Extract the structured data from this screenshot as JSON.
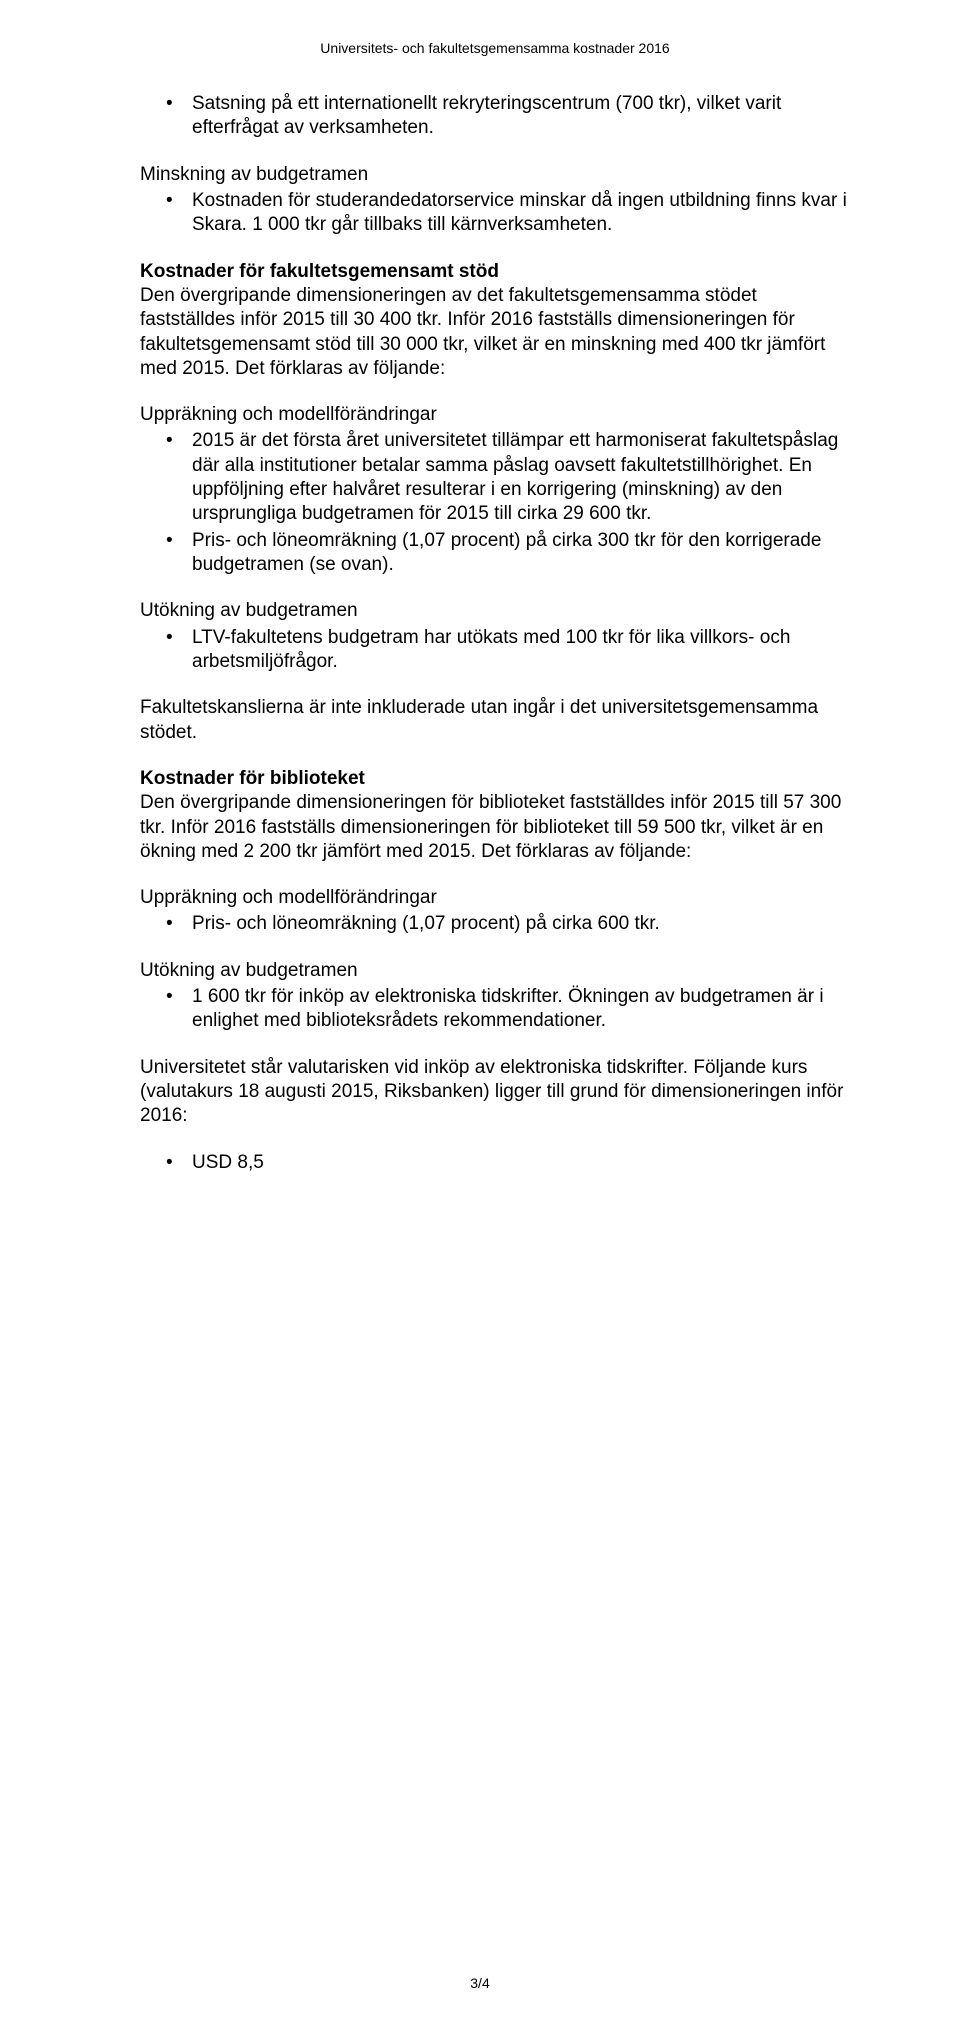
{
  "header": "Universitets- och fakultetsgemensamma kostnader 2016",
  "footer": "3/4",
  "b1_item1": "Satsning på ett internationellt rekryteringscentrum (700 tkr), vilket varit efterfrågat av verksamheten.",
  "p_minskning": "Minskning av budgetramen",
  "b2_item1": "Kostnaden för studerandedatorservice minskar då ingen utbildning finns kvar i Skara. 1 000 tkr går tillbaks till kärnverksamheten.",
  "h_fakstod": "Kostnader för fakultetsgemensamt stöd",
  "p_fakstod": "Den övergripande dimensioneringen av det fakultetsgemensamma stödet fastställdes inför 2015 till 30 400 tkr. Inför 2016 fastställs dimensioneringen för fakultetsgemensamt stöd till 30 000 tkr, vilket är en minskning med 400 tkr jämfört med 2015. Det förklaras av följande:",
  "p_upprakning1": "Uppräkning och modellförändringar",
  "b3_item1": "2015 är det första året universitetet tillämpar ett harmoniserat fakultetspåslag där alla institutioner betalar samma påslag oavsett fakultetstillhörighet. En uppföljning efter halvåret resulterar i en korrigering (minskning) av den ursprungliga budgetramen för 2015 till cirka 29 600 tkr.",
  "b3_item2": "Pris- och löneomräkning (1,07 procent) på cirka 300 tkr för den korrigerade budgetramen (se ovan).",
  "p_utokning1": "Utökning av budgetramen",
  "b4_item1": "LTV-fakultetens budgetram har utökats med 100 tkr för lika villkors- och arbetsmiljöfrågor.",
  "p_kanslier": "Fakultetskanslierna är inte inkluderade utan ingår i det universitetsgemensamma stödet.",
  "h_bibliotek": "Kostnader för biblioteket",
  "p_bibliotek": "Den övergripande dimensioneringen för biblioteket fastställdes inför 2015 till 57 300 tkr. Inför 2016 fastställs dimensioneringen för biblioteket till 59 500 tkr, vilket är en ökning med 2 200 tkr jämfört med 2015. Det förklaras av följande:",
  "p_upprakning2": "Uppräkning och modellförändringar",
  "b5_item1": "Pris- och löneomräkning (1,07 procent) på cirka 600 tkr.",
  "p_utokning2": "Utökning av budgetramen",
  "b6_item1": "1 600 tkr för inköp av elektroniska tidskrifter. Ökningen av budgetramen är i enlighet med biblioteksrådets rekommendationer.",
  "p_valuta": "Universitetet står valutarisken vid inköp av elektroniska tidskrifter. Följande kurs (valutakurs 18 augusti 2015, Riksbanken) ligger till grund för dimensioneringen inför 2016:",
  "b7_item1": "USD 8,5"
}
